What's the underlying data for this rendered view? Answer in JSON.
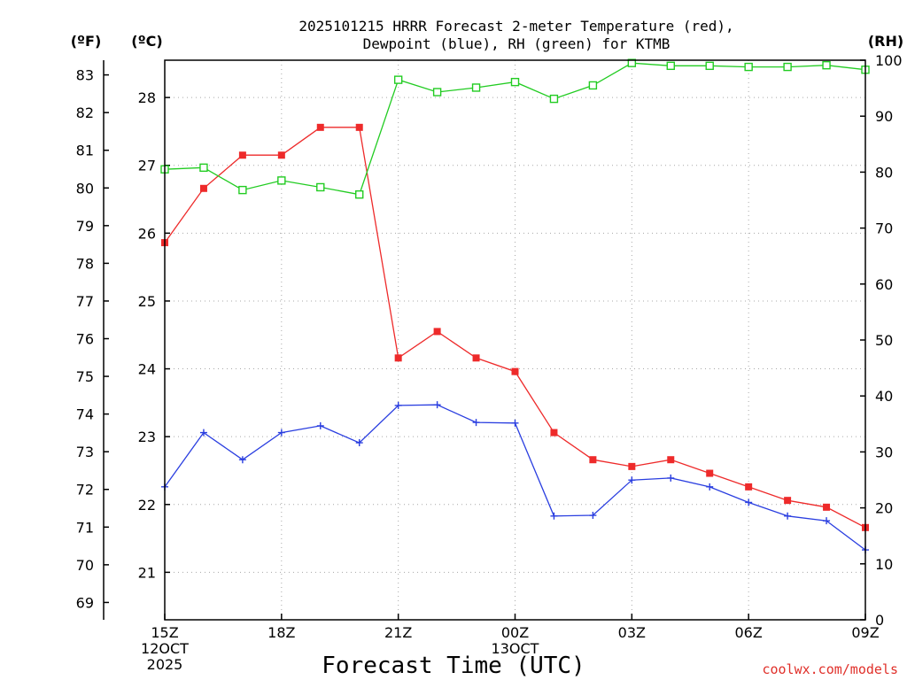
{
  "title_line1": "2025101215 HRRR Forecast 2-meter Temperature (red),",
  "title_line2": "Dewpoint (blue), RH (green) for KTMB",
  "units": {
    "fahrenheit": "(ºF)",
    "celsius": "(ºC)",
    "rh": "(RH)"
  },
  "credit": "coolwx.com/models",
  "credit_color": "#e0302a",
  "chart_data": {
    "type": "line",
    "xlabel": "Forecast Time (UTC)",
    "x_hours": [
      0,
      1,
      2,
      3,
      4,
      5,
      6,
      7,
      8,
      9,
      10,
      11,
      12,
      13,
      14,
      15,
      16,
      17,
      18
    ],
    "x_ticks": [
      {
        "hour": 0,
        "lines": [
          "15Z",
          "12OCT",
          "2025"
        ]
      },
      {
        "hour": 3,
        "lines": [
          "18Z"
        ]
      },
      {
        "hour": 6,
        "lines": [
          "21Z"
        ]
      },
      {
        "hour": 9,
        "lines": [
          "00Z",
          "13OCT"
        ]
      },
      {
        "hour": 12,
        "lines": [
          "03Z"
        ]
      },
      {
        "hour": 15,
        "lines": [
          "06Z"
        ]
      },
      {
        "hour": 18,
        "lines": [
          "09Z"
        ]
      }
    ],
    "celsius_axis": {
      "range": [
        20.3,
        28.55
      ],
      "ticks": [
        21,
        22,
        23,
        24,
        25,
        26,
        27,
        28
      ]
    },
    "fahrenheit_axis": {
      "ticks": [
        69,
        70,
        71,
        72,
        73,
        74,
        75,
        76,
        77,
        78,
        79,
        80,
        81,
        82,
        83
      ]
    },
    "rh_axis": {
      "range": [
        0,
        100
      ],
      "ticks": [
        0,
        10,
        20,
        30,
        40,
        50,
        60,
        70,
        80,
        90,
        100
      ]
    },
    "grid": true,
    "series": [
      {
        "name": "Temperature (red)",
        "axis": "celsius",
        "color": "#ee2a2a",
        "marker": "filled-square",
        "values": [
          25.86,
          26.66,
          27.15,
          27.15,
          27.56,
          27.56,
          24.16,
          24.55,
          24.16,
          23.96,
          23.06,
          22.66,
          22.56,
          22.66,
          22.46,
          22.26,
          22.06,
          21.96,
          21.66
        ]
      },
      {
        "name": "Dewpoint (blue)",
        "axis": "celsius",
        "color": "#2a3ee0",
        "marker": "plus",
        "values": [
          22.26,
          23.06,
          22.66,
          23.06,
          23.16,
          22.91,
          23.46,
          23.47,
          23.21,
          23.2,
          21.83,
          21.84,
          22.36,
          22.39,
          22.26,
          22.03,
          21.83,
          21.76,
          21.33
        ]
      },
      {
        "name": "RH (green)",
        "axis": "rh",
        "color": "#22cc22",
        "marker": "open-square",
        "values": [
          80.5,
          80.8,
          76.8,
          78.5,
          77.3,
          76.0,
          96.5,
          94.3,
          95.1,
          96.1,
          93.1,
          95.5,
          99.5,
          99.0,
          99.0,
          98.8,
          98.8,
          99.1,
          98.3
        ]
      }
    ]
  }
}
